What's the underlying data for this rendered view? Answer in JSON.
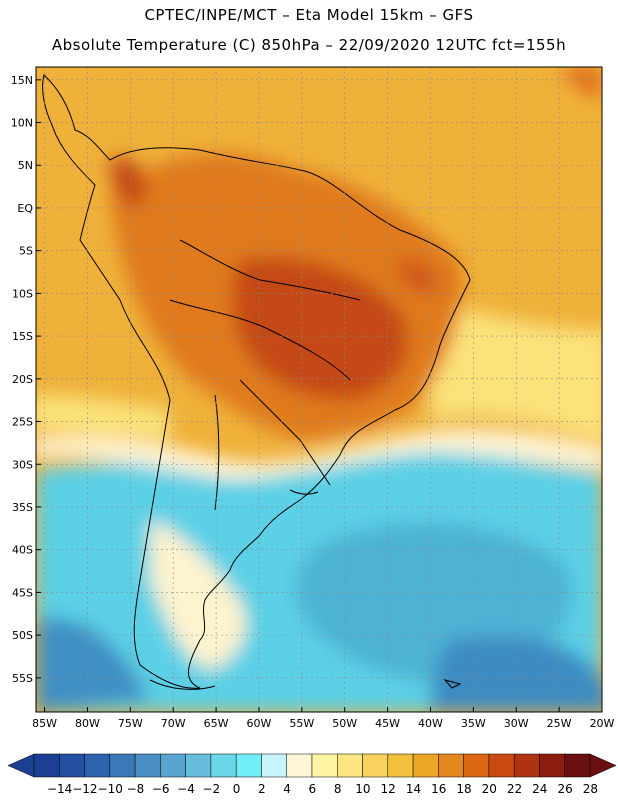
{
  "header": {
    "line1": "CPTEC/INPE/MCT –  Eta Model 15km – GFS",
    "line2": "Absolute Temperature (C) 850hPa – 22/09/2020 12UTC fct=155h"
  },
  "map": {
    "region": "South America",
    "variable": "Absolute Temperature (C) 850hPa",
    "lon_range": [
      -86,
      -20
    ],
    "lat_range": [
      -59,
      16.5
    ],
    "lat_ticks": [
      "15N",
      "10N",
      "5N",
      "EQ",
      "5S",
      "10S",
      "15S",
      "20S",
      "25S",
      "30S",
      "35S",
      "40S",
      "45S",
      "50S",
      "55S"
    ],
    "lat_values": [
      15,
      10,
      5,
      0,
      -5,
      -10,
      -15,
      -20,
      -25,
      -30,
      -35,
      -40,
      -45,
      -50,
      -55
    ],
    "lon_ticks": [
      "85W",
      "80W",
      "75W",
      "70W",
      "65W",
      "60W",
      "55W",
      "50W",
      "45W",
      "40W",
      "35W",
      "30W",
      "25W",
      "20W"
    ],
    "lon_values": [
      -85,
      -80,
      -75,
      -70,
      -65,
      -60,
      -55,
      -50,
      -45,
      -40,
      -35,
      -30,
      -25,
      -20
    ]
  },
  "colorbar": {
    "labels": [
      "-14",
      "-12",
      "-10",
      "-8",
      "-6",
      "-4",
      "-2",
      "0",
      "2",
      "4",
      "6",
      "8",
      "10",
      "12",
      "14",
      "16",
      "18",
      "20",
      "22",
      "24",
      "26",
      "28"
    ],
    "colors": [
      "#1c3f94",
      "#2450a2",
      "#2d63ae",
      "#3a78b8",
      "#4a8fc4",
      "#5aa5cf",
      "#66bedc",
      "#6ad6e8",
      "#70eef6",
      "#c8f4fb",
      "#fff6d8",
      "#fdf4a4",
      "#fbe682",
      "#f8d25e",
      "#f3c03c",
      "#eba628",
      "#e4871c",
      "#dc6714",
      "#c94a12",
      "#b0330f",
      "#8c1e0f",
      "#6a1010"
    ]
  }
}
